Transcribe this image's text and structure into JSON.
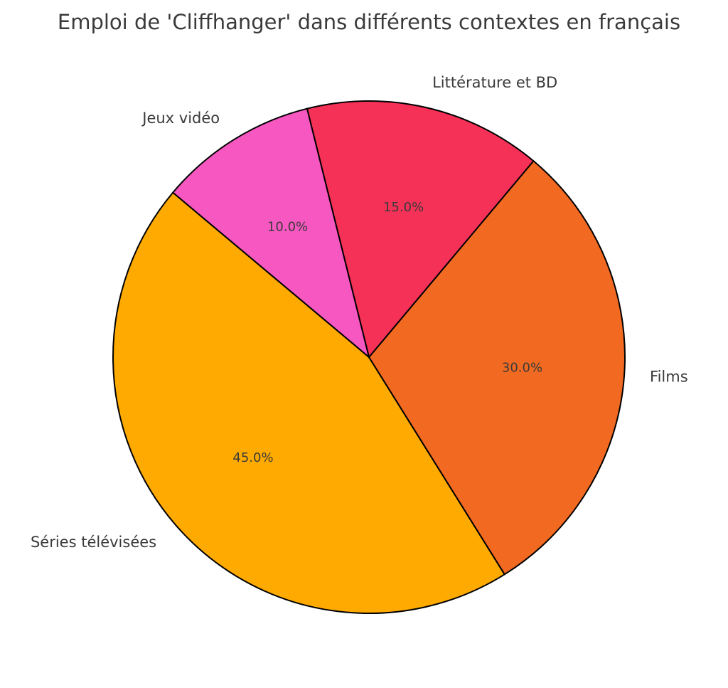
{
  "chart_data": {
    "type": "pie",
    "title": "Emploi de 'Cliffhanger' dans différents contextes en français",
    "slices": [
      {
        "label": "Séries télévisées",
        "value": 45.0,
        "pct_label": "45.0%",
        "color": "#FFAA00"
      },
      {
        "label": "Films",
        "value": 30.0,
        "pct_label": "30.0%",
        "color": "#F26A21"
      },
      {
        "label": "Littérature et BD",
        "value": 15.0,
        "pct_label": "15.0%",
        "color": "#F53158"
      },
      {
        "label": "Jeux vidéo",
        "value": 10.0,
        "pct_label": "10.0%",
        "color": "#F757C0"
      }
    ],
    "start_angle_deg": 140,
    "direction": "counterclockwise",
    "legend": "none"
  }
}
